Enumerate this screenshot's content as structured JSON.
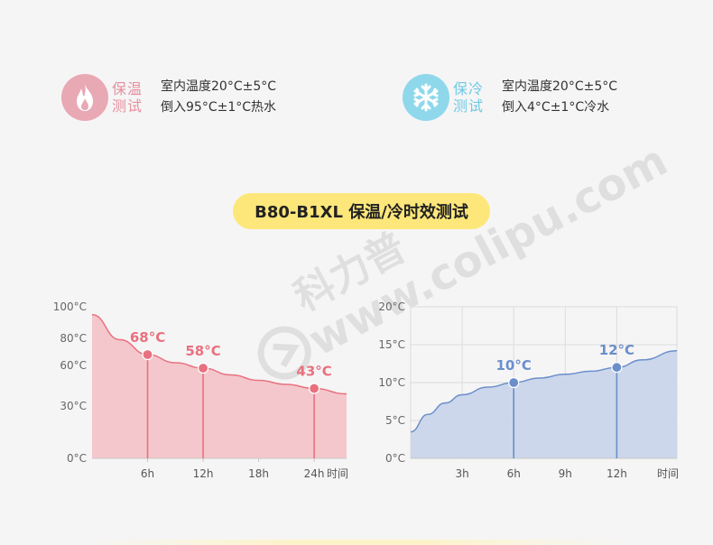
{
  "legend_hot": {
    "icon": "flame-icon",
    "tag": [
      "保温",
      "测试"
    ],
    "lines": [
      "室内温度20°C±5°C",
      "倒入95°C±1°C热水"
    ],
    "color": "#e8a8b4"
  },
  "legend_cold": {
    "icon": "snowflake-icon",
    "tag": [
      "保冷",
      "测试"
    ],
    "lines": [
      "室内温度20°C±5°C",
      "倒入4°C±1°C冷水"
    ],
    "color": "#8fd8ec"
  },
  "title": "B80-B1XL 保温/冷时效测试",
  "watermark": {
    "text": "www.colipu.com",
    "brand": "科力普"
  },
  "chart_data": [
    {
      "type": "area",
      "color": "#e8717f",
      "fill": "#f4c2c8",
      "xlim": [
        0,
        27.5
      ],
      "ylim": [
        0,
        100
      ],
      "x_ticks": [
        6,
        12,
        18,
        24
      ],
      "x_tick_labels": [
        "6h",
        "12h",
        "18h",
        "24h"
      ],
      "x_unit_label": "时间",
      "y_ticks": [
        0,
        30,
        60,
        80,
        100
      ],
      "y_tick_labels": [
        "0°C",
        "30°C",
        "60°C",
        "80°C",
        "100°C"
      ],
      "curve": {
        "x": [
          0,
          3,
          6,
          9,
          12,
          15,
          18,
          21,
          24,
          27.5
        ],
        "y": [
          95,
          79,
          68,
          62,
          58,
          53,
          49,
          46,
          43,
          39
        ]
      },
      "markers": {
        "x": [
          6,
          12,
          24
        ],
        "y": [
          68,
          58,
          43
        ],
        "labels": [
          "68°C",
          "58°C",
          "43°C"
        ]
      }
    },
    {
      "type": "area",
      "color": "#6b8fcb",
      "fill": "#c8d4ea",
      "xlim": [
        0,
        15.5
      ],
      "ylim": [
        0,
        20
      ],
      "x_ticks": [
        3,
        6,
        9,
        12
      ],
      "x_tick_labels": [
        "3h",
        "6h",
        "9h",
        "12h"
      ],
      "x_unit_label": "时间",
      "y_ticks": [
        0,
        5,
        10,
        15,
        20
      ],
      "y_tick_labels": [
        "0°C",
        "5°C",
        "10°C",
        "15°C",
        "20°C"
      ],
      "curve": {
        "x": [
          0,
          1,
          2,
          3,
          4.5,
          6,
          7.5,
          9,
          10.5,
          12,
          13.5,
          15.5
        ],
        "y": [
          3.5,
          5.8,
          7.3,
          8.4,
          9.4,
          10,
          10.6,
          11.1,
          11.5,
          12,
          13,
          14.2
        ]
      },
      "markers": {
        "x": [
          6,
          12
        ],
        "y": [
          10,
          12
        ],
        "labels": [
          "10°C",
          "12°C"
        ]
      }
    }
  ]
}
